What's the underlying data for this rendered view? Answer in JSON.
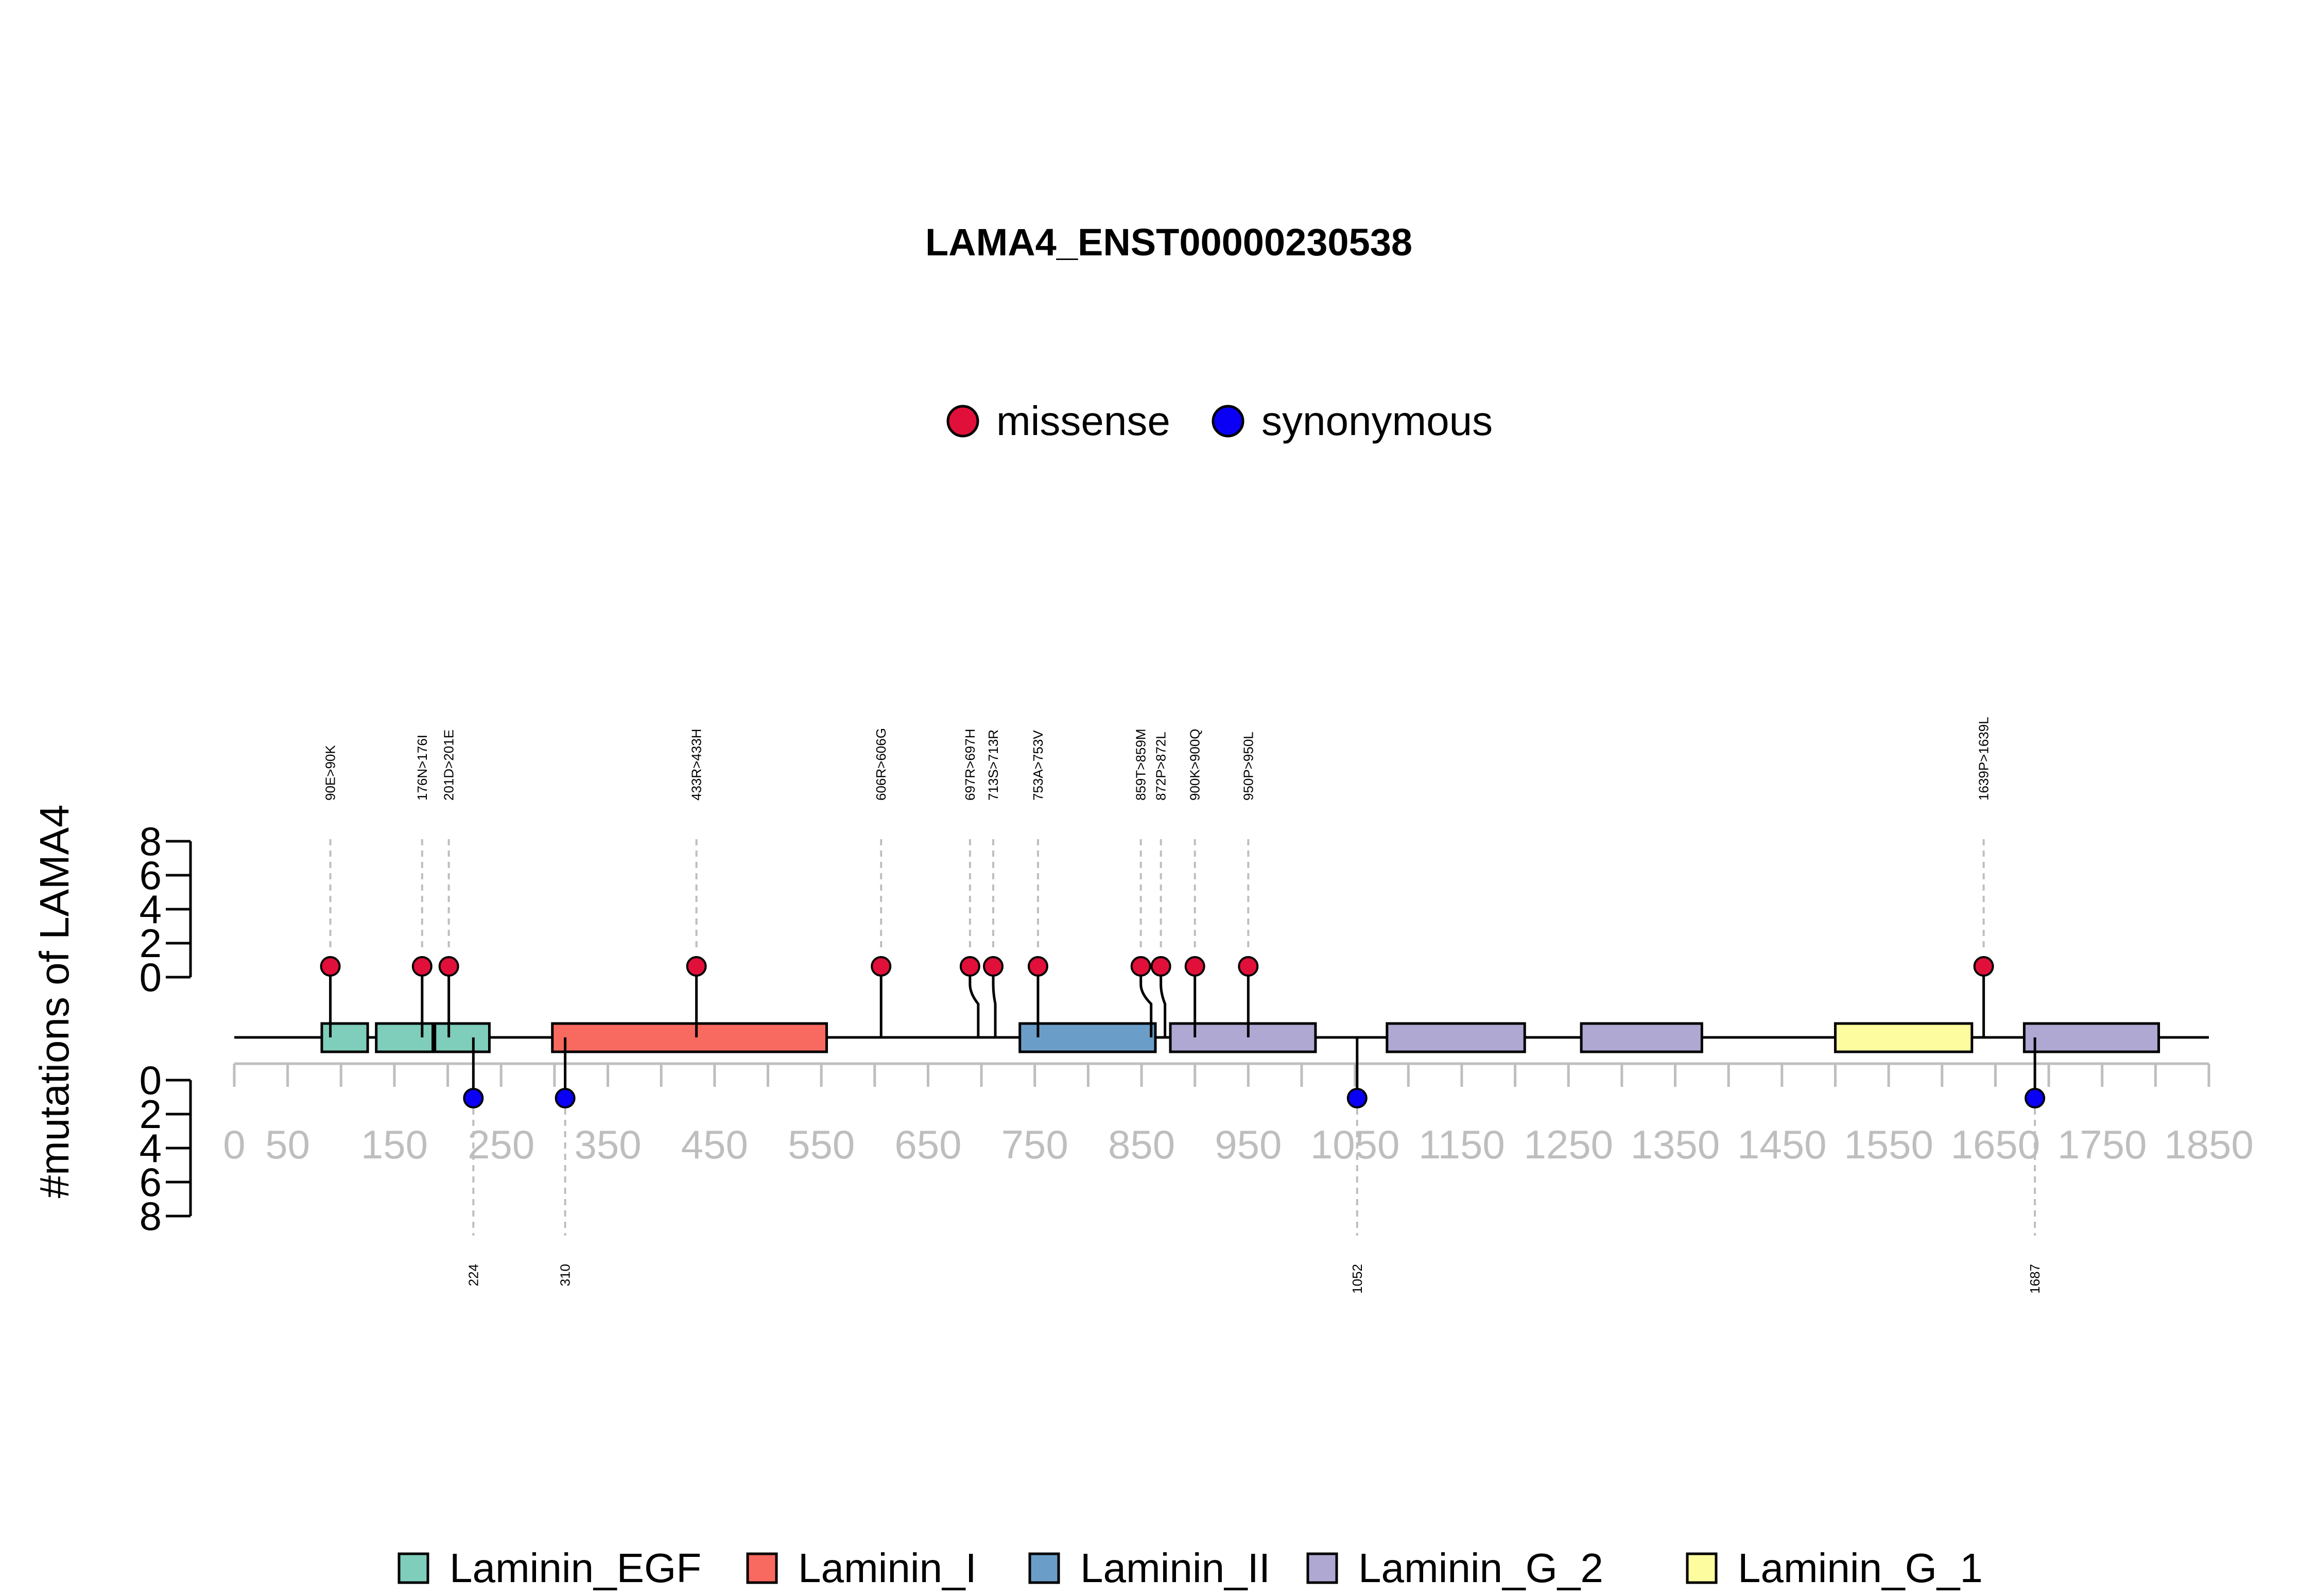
{
  "chart_data": {
    "type": "lollipop",
    "title": "LAMA4_ENST00000230538",
    "ylabel": "#mutations of LAMA4",
    "xlim": [
      0,
      1850
    ],
    "x_ticks": [
      0,
      50,
      150,
      250,
      350,
      450,
      550,
      650,
      750,
      850,
      950,
      1050,
      1150,
      1250,
      1350,
      1450,
      1550,
      1650,
      1750,
      1850
    ],
    "y_ticks": [
      0,
      2,
      4,
      6,
      8
    ],
    "ylim": [
      0,
      8
    ],
    "mutation_legend": [
      {
        "name": "missense",
        "color": "#e0103a"
      },
      {
        "name": "synonymous",
        "color": "#0a00f5"
      }
    ],
    "domain_legend": [
      {
        "name": "Laminin_EGF",
        "color": "#7fcdbb"
      },
      {
        "name": "Laminin_I",
        "color": "#f8695f"
      },
      {
        "name": "Laminin_II",
        "color": "#6a9ec8"
      },
      {
        "name": "Laminin_G_2",
        "color": "#aea8d2"
      },
      {
        "name": "Laminin_G_1",
        "color": "#fdfda0"
      }
    ],
    "domains": [
      {
        "name": "Laminin_EGF",
        "start": 82,
        "end": 125
      },
      {
        "name": "Laminin_EGF",
        "start": 133,
        "end": 186
      },
      {
        "name": "Laminin_EGF",
        "start": 188,
        "end": 239
      },
      {
        "name": "Laminin_I",
        "start": 298,
        "end": 555
      },
      {
        "name": "Laminin_II",
        "start": 736,
        "end": 863
      },
      {
        "name": "Laminin_G_2",
        "start": 877,
        "end": 1013
      },
      {
        "name": "Laminin_G_2",
        "start": 1080,
        "end": 1209
      },
      {
        "name": "Laminin_G_2",
        "start": 1262,
        "end": 1375
      },
      {
        "name": "Laminin_G_1",
        "start": 1500,
        "end": 1628
      },
      {
        "name": "Laminin_G_2",
        "start": 1677,
        "end": 1803
      }
    ],
    "missense": [
      {
        "label": "90E>90K",
        "position": 90,
        "count": 1
      },
      {
        "label": "176N>176I",
        "position": 176,
        "count": 1
      },
      {
        "label": "201D>201E",
        "position": 201,
        "count": 1
      },
      {
        "label": "433R>433H",
        "position": 433,
        "count": 1
      },
      {
        "label": "606R>606G",
        "position": 606,
        "count": 1
      },
      {
        "label": "697R>697H",
        "position": 697,
        "count": 1
      },
      {
        "label": "713S>713R",
        "position": 713,
        "count": 1
      },
      {
        "label": "753A>753V",
        "position": 753,
        "count": 1
      },
      {
        "label": "859T>859M",
        "position": 859,
        "count": 1
      },
      {
        "label": "872P>872L",
        "position": 872,
        "count": 1
      },
      {
        "label": "900K>900Q",
        "position": 900,
        "count": 1
      },
      {
        "label": "950P>950L",
        "position": 950,
        "count": 1
      },
      {
        "label": "1639P>1639L",
        "position": 1639,
        "count": 1
      }
    ],
    "synonymous": [
      {
        "label": "224",
        "position": 224,
        "count": 1
      },
      {
        "label": "310",
        "position": 310,
        "count": 1
      },
      {
        "label": "1052",
        "position": 1052,
        "count": 1
      },
      {
        "label": "1687",
        "position": 1687,
        "count": 1
      }
    ]
  }
}
